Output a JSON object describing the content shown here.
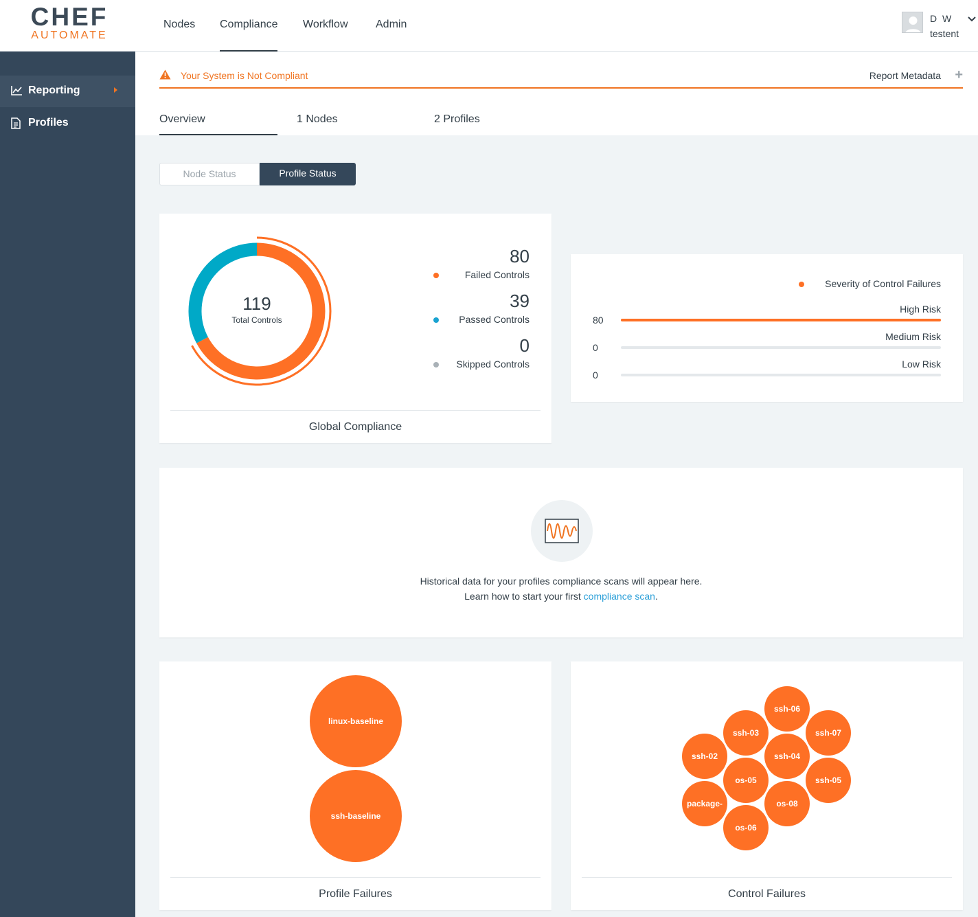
{
  "brand": {
    "line1": "CHEF",
    "line2": "AUTOMATE"
  },
  "nav": [
    {
      "label": "Nodes",
      "active": false
    },
    {
      "label": "Compliance",
      "active": true
    },
    {
      "label": "Workflow",
      "active": false
    },
    {
      "label": "Admin",
      "active": false
    }
  ],
  "user": {
    "name": "D W",
    "org": "testent",
    "icon": "chevron-down-icon"
  },
  "sidebar": [
    {
      "label": "Reporting",
      "icon": "chart-line-icon",
      "active": true
    },
    {
      "label": "Profiles",
      "icon": "document-icon",
      "active": false
    }
  ],
  "alert": {
    "text": "Your System is Not Compliant",
    "icon": "warning-icon",
    "color": "#f07421"
  },
  "report_metadata": {
    "label": "Report Metadata",
    "icon": "plus-icon"
  },
  "tabs": [
    {
      "label": "Overview",
      "active": true
    },
    {
      "label": "1 Nodes",
      "active": false
    },
    {
      "label": "2 Profiles",
      "active": false
    }
  ],
  "status_toggle": {
    "node": "Node Status",
    "profile": "Profile Status",
    "selected": "Profile Status"
  },
  "global_compliance": {
    "title": "Global Compliance",
    "total": "119",
    "total_label": "Total Controls",
    "stats": [
      {
        "value": "80",
        "label": "Failed Controls",
        "color": "#fe7025"
      },
      {
        "value": "39",
        "label": "Passed Controls",
        "color": "#1aa3d1"
      },
      {
        "value": "0",
        "label": "Skipped Controls",
        "color": "#a9b1b7"
      }
    ]
  },
  "chart_data": {
    "type": "pie",
    "title": "Global Compliance",
    "categories": [
      "Failed Controls",
      "Passed Controls",
      "Skipped Controls"
    ],
    "values": [
      80,
      39,
      0
    ],
    "colors": [
      "#fe7025",
      "#00a9c7",
      "#a9b1b7"
    ]
  },
  "severity": {
    "legend": "Severity of Control Failures",
    "legend_color": "#fe7025",
    "max": 80,
    "rows": [
      {
        "label": "High Risk",
        "value": "80"
      },
      {
        "label": "Medium Risk",
        "value": "0"
      },
      {
        "label": "Low Risk",
        "value": "0"
      }
    ]
  },
  "history": {
    "icon": "waveform-chart-icon",
    "line1": "Historical data for your profiles compliance scans will appear here.",
    "line2_prefix": "Learn how to start your first ",
    "link": "compliance scan",
    "line2_suffix": "."
  },
  "profile_failures": {
    "title": "Profile Failures",
    "bubbles": [
      "linux-baseline",
      "ssh-baseline"
    ]
  },
  "control_failures": {
    "title": "Control Failures",
    "bubbles": [
      "ssh-06",
      "ssh-03",
      "ssh-07",
      "ssh-02",
      "ssh-04",
      "os-05",
      "ssh-05",
      "package-",
      "os-08",
      "os-06"
    ]
  }
}
